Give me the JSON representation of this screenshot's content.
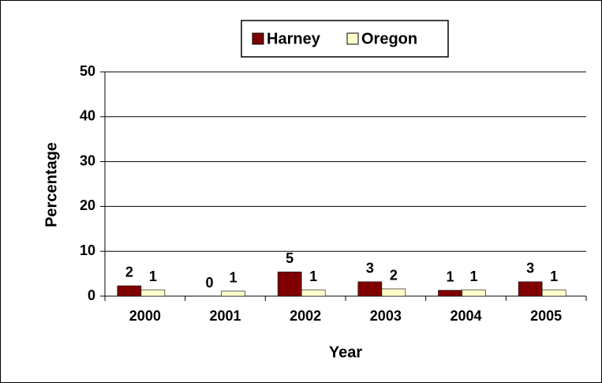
{
  "chart_data": {
    "type": "bar",
    "categories": [
      "2000",
      "2001",
      "2002",
      "2003",
      "2004",
      "2005"
    ],
    "series": [
      {
        "name": "Harney",
        "color": "#800000",
        "values": [
          2.3,
          0,
          5.4,
          3.2,
          1.3,
          3.2
        ],
        "value_labels": [
          "2",
          "0",
          "5",
          "3",
          "1",
          "3"
        ]
      },
      {
        "name": "Oregon",
        "color": "#ffffcc",
        "values": [
          1.4,
          1.1,
          1.4,
          1.6,
          1.4,
          1.4
        ],
        "value_labels": [
          "1",
          "1",
          "1",
          "2",
          "1",
          "1"
        ]
      }
    ],
    "xlabel": "Year",
    "ylabel": "Percentage",
    "ylim": [
      0,
      50
    ],
    "yticks": [
      0,
      10,
      20,
      30,
      40,
      50
    ],
    "grid": true,
    "legend": "top"
  }
}
